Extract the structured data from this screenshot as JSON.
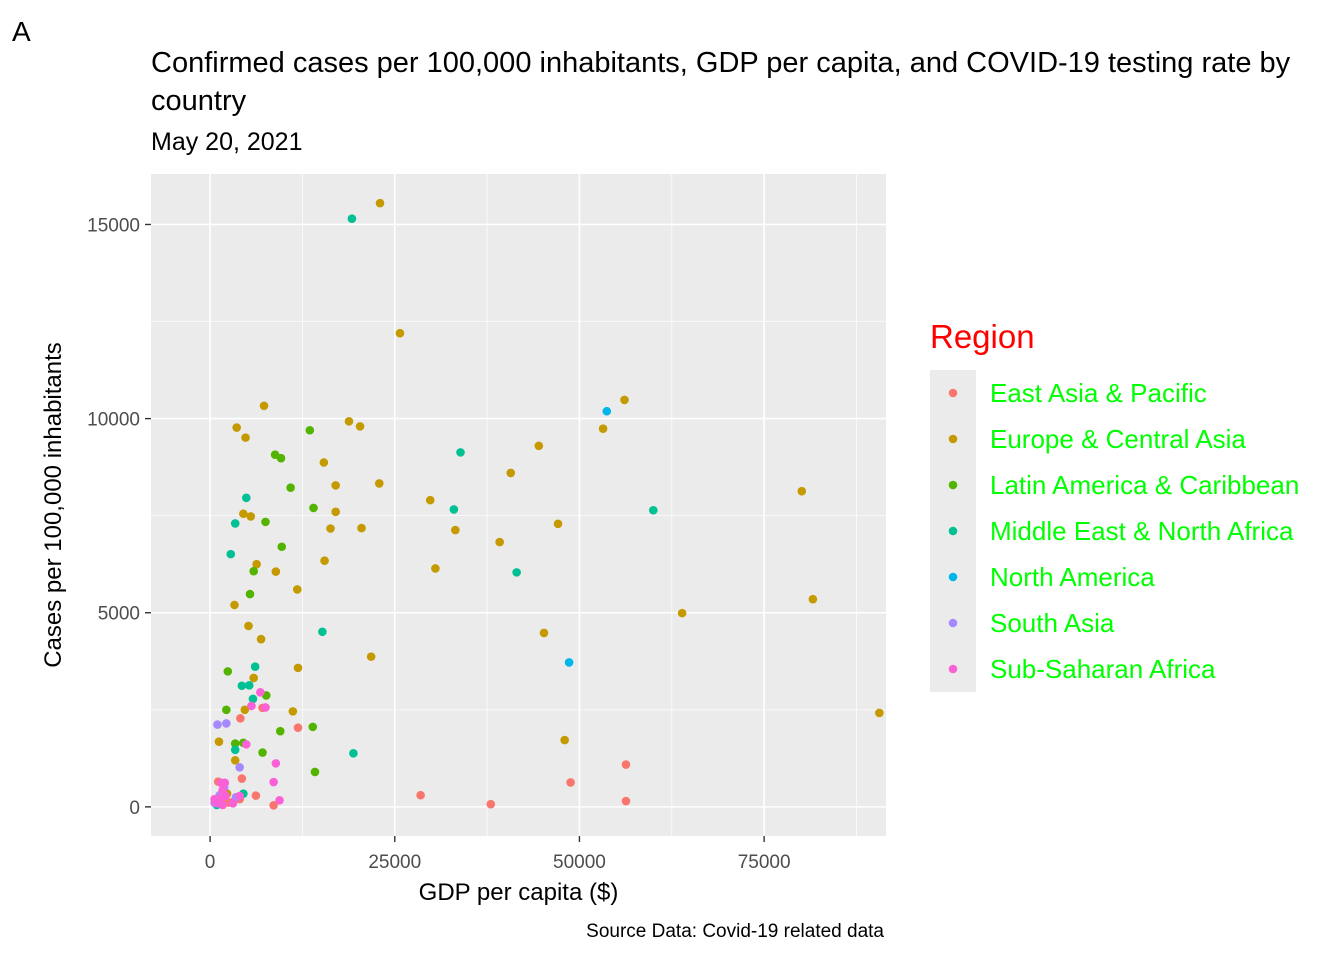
{
  "panel_tag": "A",
  "chart_data": {
    "type": "scatter",
    "title": "Confirmed cases per 100,000 inhabitants, GDP per capita, and COVID-19 testing rate by country",
    "subtitle": "May 20, 2021",
    "xlabel": "GDP per capita ($)",
    "ylabel": "Cases per 100,000 inhabitants",
    "caption": "Source Data: Covid-19 related data",
    "xlim": [
      -8000,
      91500
    ],
    "ylim": [
      -750,
      16300
    ],
    "x_ticks": [
      0,
      25000,
      50000,
      75000
    ],
    "x_tick_labels": [
      "0",
      "25000",
      "50000",
      "75000"
    ],
    "y_ticks": [
      0,
      5000,
      10000,
      15000
    ],
    "y_tick_labels": [
      "0",
      "5000",
      "10000",
      "15000"
    ],
    "grid": true,
    "legend": {
      "title": "Region",
      "title_color": "#FF0000",
      "label_color": "#00FF00",
      "placement": "right"
    },
    "series": [
      {
        "name": "East Asia & Pacific",
        "color": "#F8766D",
        "points": [
          [
            56300,
            1090
          ],
          [
            48800,
            630
          ],
          [
            56300,
            150
          ],
          [
            38000,
            70
          ],
          [
            28500,
            300
          ],
          [
            11900,
            2040
          ],
          [
            7100,
            2550
          ],
          [
            4100,
            2280
          ],
          [
            4300,
            730
          ],
          [
            6200,
            290
          ],
          [
            3000,
            120
          ],
          [
            2500,
            110
          ],
          [
            1600,
            200
          ],
          [
            1100,
            650
          ],
          [
            8600,
            40
          ],
          [
            800,
            130
          ],
          [
            2100,
            370
          ],
          [
            4000,
            200
          ]
        ]
      },
      {
        "name": "Europe & Central Asia",
        "color": "#C49A00",
        "points": [
          [
            23000,
            15550
          ],
          [
            25700,
            12200
          ],
          [
            7300,
            10330
          ],
          [
            56100,
            10480
          ],
          [
            53200,
            9740
          ],
          [
            3600,
            9770
          ],
          [
            18800,
            9930
          ],
          [
            20300,
            9800
          ],
          [
            4800,
            9510
          ],
          [
            44500,
            9300
          ],
          [
            15400,
            8870
          ],
          [
            40700,
            8600
          ],
          [
            22900,
            8330
          ],
          [
            17000,
            8280
          ],
          [
            80100,
            8130
          ],
          [
            29800,
            7900
          ],
          [
            33200,
            7130
          ],
          [
            47100,
            7290
          ],
          [
            4500,
            7550
          ],
          [
            5500,
            7480
          ],
          [
            17000,
            7600
          ],
          [
            16300,
            7170
          ],
          [
            20500,
            7180
          ],
          [
            39200,
            6820
          ],
          [
            15500,
            6340
          ],
          [
            6300,
            6250
          ],
          [
            30500,
            6140
          ],
          [
            8900,
            6060
          ],
          [
            11800,
            5600
          ],
          [
            81600,
            5350
          ],
          [
            3300,
            5200
          ],
          [
            63900,
            4990
          ],
          [
            5200,
            4660
          ],
          [
            6900,
            4320
          ],
          [
            45200,
            4480
          ],
          [
            21800,
            3870
          ],
          [
            11900,
            3580
          ],
          [
            5900,
            3320
          ],
          [
            11200,
            2460
          ],
          [
            90600,
            2420
          ],
          [
            4700,
            2500
          ],
          [
            48000,
            1720
          ],
          [
            1200,
            1680
          ],
          [
            3400,
            1200
          ],
          [
            2300,
            340
          ]
        ]
      },
      {
        "name": "Latin America & Caribbean",
        "color": "#53B400",
        "points": [
          [
            13500,
            9700
          ],
          [
            8800,
            9070
          ],
          [
            9600,
            8980
          ],
          [
            10900,
            8220
          ],
          [
            14000,
            7700
          ],
          [
            7500,
            7340
          ],
          [
            9700,
            6700
          ],
          [
            5900,
            6070
          ],
          [
            5400,
            5480
          ],
          [
            2400,
            3490
          ],
          [
            7600,
            2870
          ],
          [
            2200,
            2500
          ],
          [
            13900,
            2060
          ],
          [
            9500,
            1950
          ],
          [
            3400,
            1630
          ],
          [
            7100,
            1400
          ],
          [
            14200,
            900
          ],
          [
            4500,
            1650
          ]
        ]
      },
      {
        "name": "Middle East & North Africa",
        "color": "#00C094",
        "points": [
          [
            19200,
            15150
          ],
          [
            33900,
            9130
          ],
          [
            4900,
            7960
          ],
          [
            33000,
            7660
          ],
          [
            60000,
            7640
          ],
          [
            3400,
            7300
          ],
          [
            2800,
            6510
          ],
          [
            41500,
            6040
          ],
          [
            15200,
            4510
          ],
          [
            6100,
            3610
          ],
          [
            4300,
            3120
          ],
          [
            5300,
            3130
          ],
          [
            5800,
            2780
          ],
          [
            19400,
            1380
          ],
          [
            3400,
            1470
          ],
          [
            4500,
            340
          ],
          [
            900,
            50
          ]
        ]
      },
      {
        "name": "North America",
        "color": "#00B6EB",
        "points": [
          [
            53700,
            10190
          ],
          [
            48600,
            3720
          ]
        ]
      },
      {
        "name": "South Asia",
        "color": "#A58AFF",
        "points": [
          [
            1000,
            2120
          ],
          [
            2200,
            2150
          ],
          [
            4000,
            1020
          ],
          [
            3500,
            250
          ],
          [
            1900,
            500
          ],
          [
            600,
            100
          ],
          [
            1300,
            300
          ]
        ]
      },
      {
        "name": "Sub-Saharan Africa",
        "color": "#FB61D7",
        "points": [
          [
            6800,
            2950
          ],
          [
            5600,
            2600
          ],
          [
            7500,
            2560
          ],
          [
            4900,
            1610
          ],
          [
            8900,
            1120
          ],
          [
            8600,
            640
          ],
          [
            9400,
            170
          ],
          [
            1500,
            620
          ],
          [
            2000,
            620
          ],
          [
            1700,
            430
          ],
          [
            700,
            120
          ],
          [
            1300,
            220
          ],
          [
            2100,
            280
          ],
          [
            1100,
            90
          ],
          [
            3100,
            90
          ],
          [
            1700,
            50
          ],
          [
            600,
            200
          ],
          [
            4000,
            280
          ]
        ]
      }
    ]
  }
}
